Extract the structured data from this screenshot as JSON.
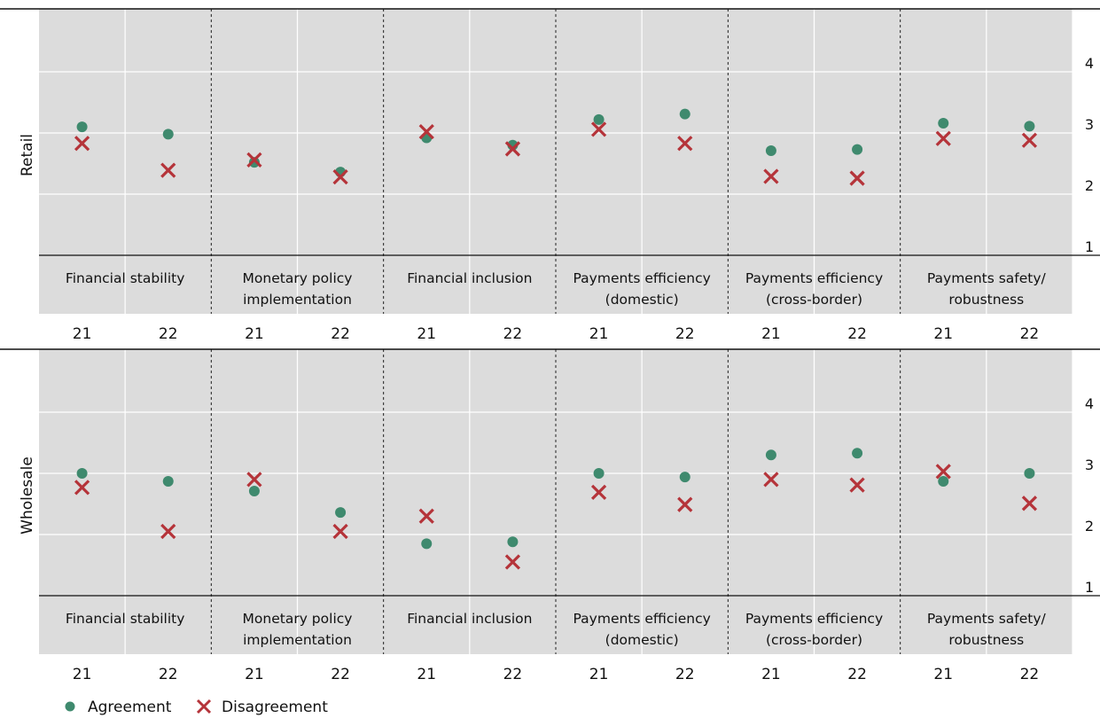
{
  "chart_data": [
    {
      "type": "scatter",
      "panel_label": "Retail",
      "ylim": [
        1,
        5
      ],
      "yticks": [
        "1",
        "2",
        "3",
        "4"
      ],
      "categories": [
        "Financial stability",
        "Monetary policy implementation",
        "Financial inclusion",
        "Payments efficiency (domestic)",
        "Payments efficiency (cross-border)",
        "Payments safety/ robustness"
      ],
      "category_lines": [
        [
          "Financial stability"
        ],
        [
          "Monetary policy",
          "implementation"
        ],
        [
          "Financial inclusion"
        ],
        [
          "Payments efficiency",
          "(domestic)"
        ],
        [
          "Payments efficiency",
          "(cross-border)"
        ],
        [
          "Payments safety/",
          "robustness"
        ]
      ],
      "years": [
        "21",
        "22"
      ],
      "series": [
        {
          "name": "Agreement",
          "values": [
            3.1,
            2.98,
            2.52,
            2.36,
            2.92,
            2.8,
            3.22,
            3.31,
            2.71,
            2.73,
            3.16,
            3.11
          ]
        },
        {
          "name": "Disagreement",
          "values": [
            2.83,
            2.39,
            2.56,
            2.28,
            3.02,
            2.74,
            3.06,
            2.83,
            2.29,
            2.26,
            2.91,
            2.88
          ]
        }
      ]
    },
    {
      "type": "scatter",
      "panel_label": "Wholesale",
      "ylim": [
        1,
        5
      ],
      "yticks": [
        "1",
        "2",
        "3",
        "4"
      ],
      "categories": [
        "Financial stability",
        "Monetary policy implementation",
        "Financial inclusion",
        "Payments efficiency (domestic)",
        "Payments efficiency (cross-border)",
        "Payments safety/ robustness"
      ],
      "category_lines": [
        [
          "Financial stability"
        ],
        [
          "Monetary policy",
          "implementation"
        ],
        [
          "Financial inclusion"
        ],
        [
          "Payments efficiency",
          "(domestic)"
        ],
        [
          "Payments efficiency",
          "(cross-border)"
        ],
        [
          "Payments safety/",
          "robustness"
        ]
      ],
      "years": [
        "21",
        "22"
      ],
      "series": [
        {
          "name": "Agreement",
          "values": [
            3.0,
            2.87,
            2.71,
            2.36,
            1.85,
            1.88,
            3.0,
            2.94,
            3.3,
            3.33,
            2.87,
            3.0
          ]
        },
        {
          "name": "Disagreement",
          "values": [
            2.77,
            2.05,
            2.9,
            2.05,
            2.3,
            1.55,
            2.69,
            2.49,
            2.9,
            2.81,
            3.03,
            2.51
          ]
        }
      ]
    }
  ],
  "legend": {
    "placement": "bottom-left",
    "items": [
      {
        "label": "Agreement",
        "marker": "dot",
        "color": "#3f8a6e"
      },
      {
        "label": "Disagreement",
        "marker": "cross",
        "color": "#b5343a"
      }
    ]
  },
  "colors": {
    "background": "#dcdcdc",
    "gridlines": "#ffffff",
    "agreement": "#3f8a6e",
    "disagreement": "#b5343a"
  }
}
